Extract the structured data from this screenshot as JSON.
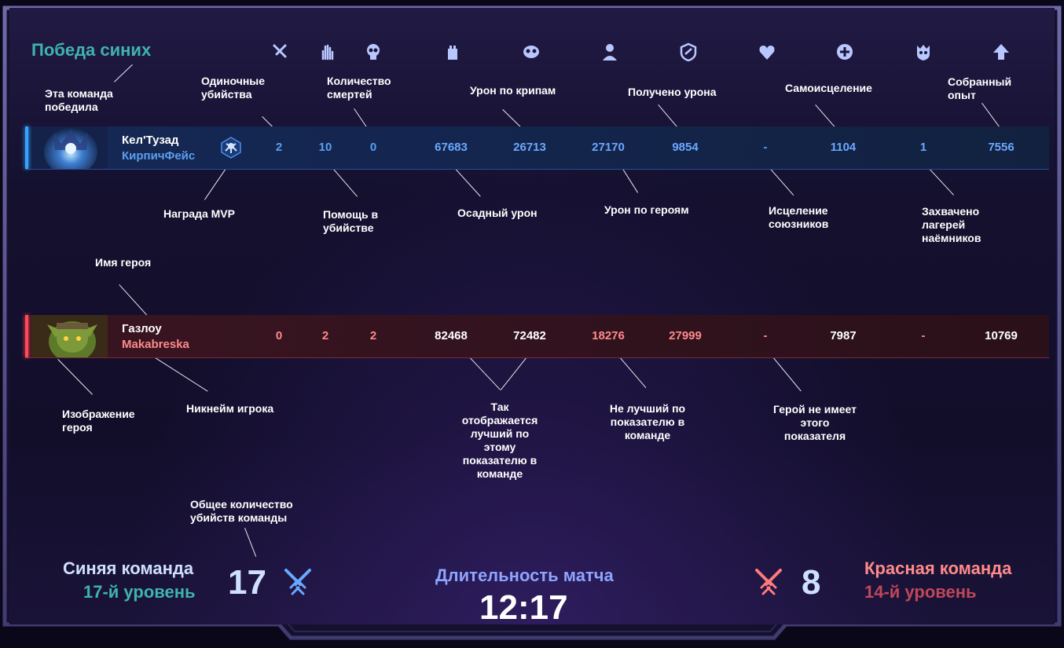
{
  "header": {
    "winner_text": "Победа синих"
  },
  "stat_icons": [
    {
      "name": "solo-kills-icon"
    },
    {
      "name": "assists-icon"
    },
    {
      "name": "deaths-icon"
    },
    {
      "name": "siege-damage-icon"
    },
    {
      "name": "creep-damage-icon"
    },
    {
      "name": "hero-damage-icon"
    },
    {
      "name": "damage-taken-icon"
    },
    {
      "name": "healing-icon"
    },
    {
      "name": "self-healing-icon"
    },
    {
      "name": "mercenary-camps-icon"
    },
    {
      "name": "experience-icon"
    }
  ],
  "annotations": {
    "winner_team": "Эта команда\nпобедила",
    "solo_kills": "Одиночные\nубийства",
    "deaths": "Количество\nсмертей",
    "creep_damage": "Урон по крипам",
    "damage_taken": "Получено урона",
    "self_healing": "Самоисцеление",
    "experience": "Собранный\nопыт",
    "mvp": "Награда MVP",
    "assists": "Помощь в\nубийстве",
    "siege": "Осадный урон",
    "hero_damage": "Урон по героям",
    "ally_healing": "Исцеление\nсоюзников",
    "camps": "Захвачено\nлагерей\nнаёмников",
    "hero_name": "Имя героя",
    "hero_image": "Изображение\nгероя",
    "player_nick": "Никнейм игрока",
    "best_stat": "Так\nотображается\nлучший по\nэтому\nпоказателю в\nкоманде",
    "not_best": "Не лучший по\nпоказателю в\nкоманде",
    "no_stat": "Герой не имеет\nэтого\nпоказателя",
    "team_kills": "Общее количество\nубийств команды"
  },
  "blue_player": {
    "hero": "Кел'Тузад",
    "player": "КирпичФейс",
    "stats": [
      "2",
      "10",
      "0",
      "67683",
      "26713",
      "27170",
      "9854",
      "-",
      "1104",
      "1",
      "7556"
    ]
  },
  "red_player": {
    "hero": "Газлоу",
    "player": "Makabreska",
    "stats": [
      "0",
      "2",
      "2",
      "82468",
      "72482",
      "18276",
      "27999",
      "-",
      "7987",
      "-",
      "10769"
    ]
  },
  "footer": {
    "blue_team": "Синяя команда",
    "blue_level": "17-й уровень",
    "blue_kills": "17",
    "duration_label": "Длительность матча",
    "duration": "12:17",
    "red_kills": "8",
    "red_team": "Красная команда",
    "red_level": "14-й уровень"
  },
  "colors": {
    "blue_stat": "#5b9ef0",
    "blue_best": "#6aa8ff",
    "red_stat": "#ff8a8a",
    "red_best": "#ffffff",
    "teal": "#3fb3ae",
    "duration": "#8fa4ff"
  }
}
